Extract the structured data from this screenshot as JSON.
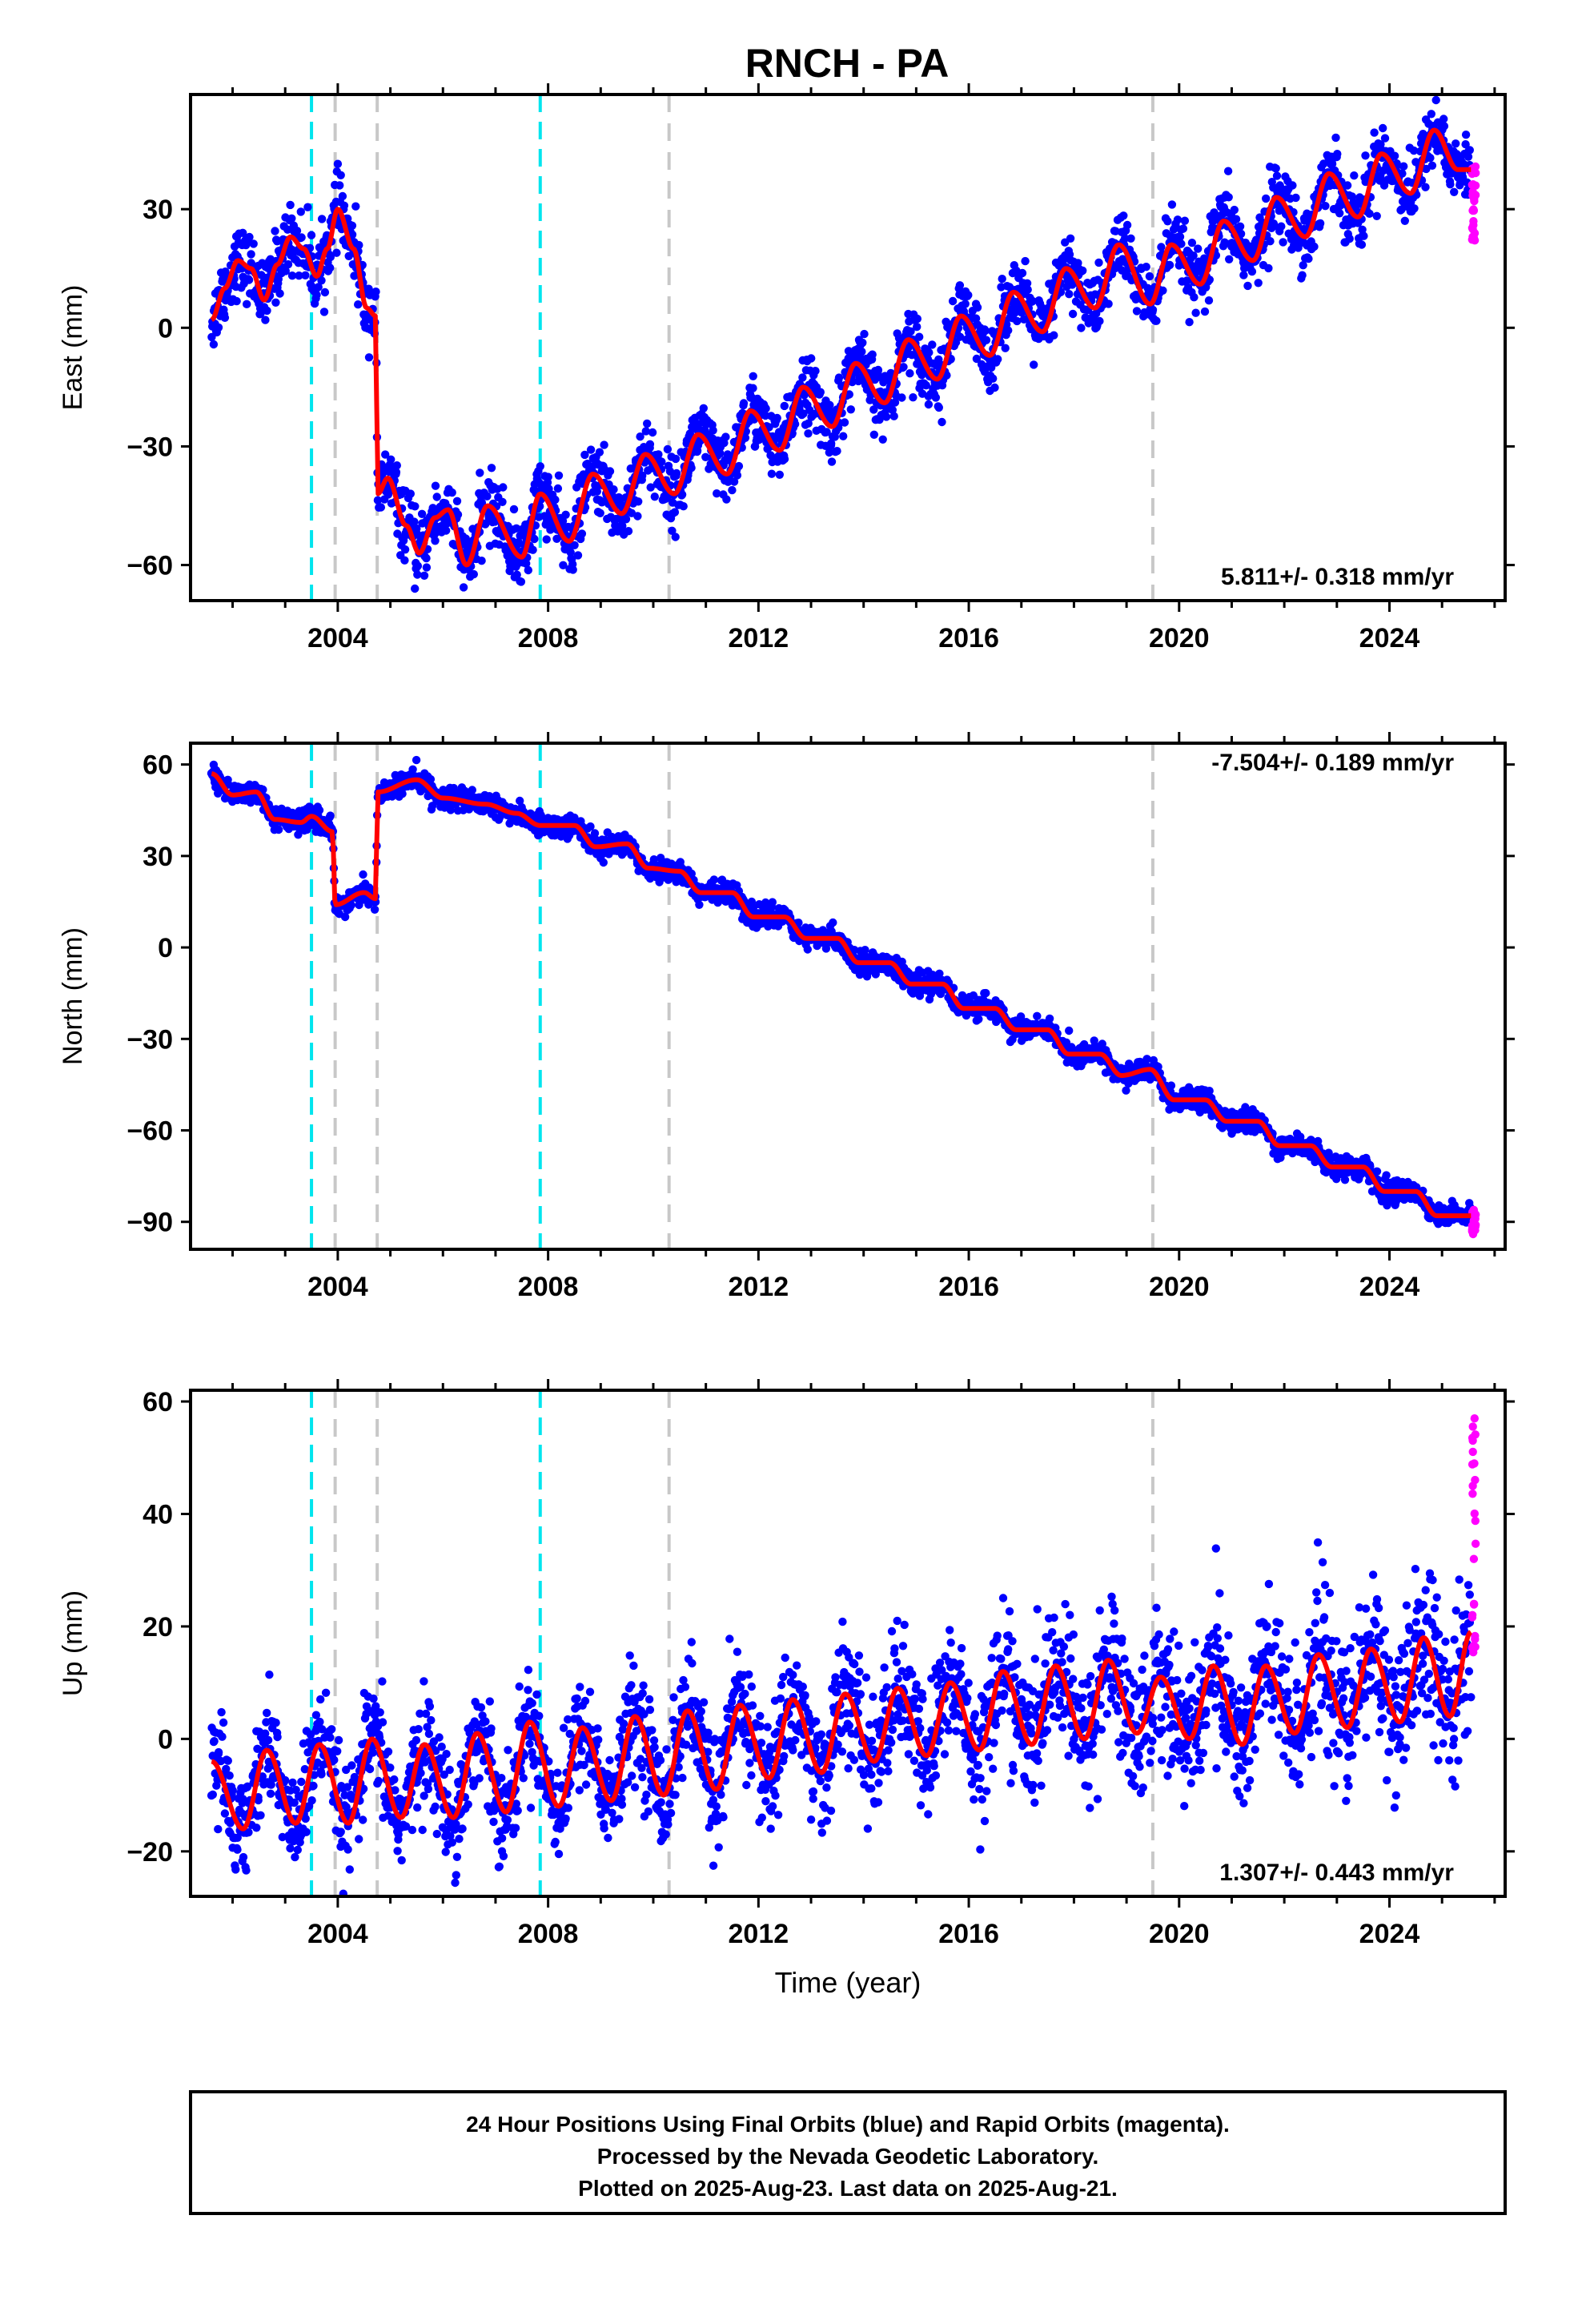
{
  "page": {
    "title": "RNCH - PA",
    "footer_lines": [
      "24 Hour Positions Using Final Orbits (blue) and Rapid Orbits (magenta).",
      "Processed by the Nevada Geodetic Laboratory.",
      "Plotted on 2025-Aug-23. Last data on 2025-Aug-21."
    ],
    "colors": {
      "final_points": "#0000ff",
      "rapid_points": "#ff00ff",
      "model": "#ff0000",
      "antenna_change": "#00e5ee",
      "other_offset": "#c8c8c8"
    }
  },
  "chart_data": [
    {
      "type": "scatter",
      "component": "east",
      "ylabel": "East (mm)",
      "xlabel": "",
      "rate": "5.811+/- 0.318 mm/yr",
      "xlim": [
        2001.2,
        2026.2
      ],
      "ylim": [
        -69,
        59
      ],
      "yticks": [
        -60,
        -30,
        0,
        30
      ],
      "xticks": [
        2004,
        2008,
        2012,
        2016,
        2020,
        2024
      ],
      "x_range": [
        2001.6,
        2025.55
      ],
      "rapid_x": [
        2025.57,
        2025.64
      ],
      "vertical_lines": [
        {
          "x": 2003.5,
          "kind": "antenna_change"
        },
        {
          "x": 2003.95,
          "kind": "other_offset"
        },
        {
          "x": 2004.75,
          "kind": "other_offset"
        },
        {
          "x": 2007.85,
          "kind": "antenna_change"
        },
        {
          "x": 2010.3,
          "kind": "other_offset"
        },
        {
          "x": 2019.5,
          "kind": "other_offset"
        }
      ],
      "model_points": [
        [
          2001.6,
          2
        ],
        [
          2001.85,
          10
        ],
        [
          2002.1,
          17
        ],
        [
          2002.35,
          15
        ],
        [
          2002.6,
          7
        ],
        [
          2002.85,
          16
        ],
        [
          2003.1,
          23
        ],
        [
          2003.35,
          20
        ],
        [
          2003.6,
          13
        ],
        [
          2003.8,
          20
        ],
        [
          2004.0,
          30
        ],
        [
          2004.3,
          20
        ],
        [
          2004.55,
          5
        ],
        [
          2004.72,
          3
        ],
        [
          2004.76,
          -42
        ],
        [
          2004.95,
          -38
        ],
        [
          2005.3,
          -50
        ],
        [
          2005.55,
          -57
        ],
        [
          2005.85,
          -48
        ],
        [
          2006.1,
          -46
        ],
        [
          2006.45,
          -60
        ],
        [
          2006.85,
          -45
        ],
        [
          2007.5,
          -58
        ],
        [
          2007.85,
          -42
        ],
        [
          2008.4,
          -54
        ],
        [
          2008.85,
          -37
        ],
        [
          2009.4,
          -47
        ],
        [
          2009.85,
          -32
        ],
        [
          2010.4,
          -42
        ],
        [
          2010.85,
          -27
        ],
        [
          2011.4,
          -37
        ],
        [
          2011.85,
          -21
        ],
        [
          2012.4,
          -31
        ],
        [
          2012.85,
          -15
        ],
        [
          2013.4,
          -25
        ],
        [
          2013.85,
          -9
        ],
        [
          2014.4,
          -19
        ],
        [
          2014.85,
          -3
        ],
        [
          2015.4,
          -13
        ],
        [
          2015.85,
          3
        ],
        [
          2016.4,
          -7
        ],
        [
          2016.85,
          9
        ],
        [
          2017.4,
          -1
        ],
        [
          2017.85,
          15
        ],
        [
          2018.4,
          5
        ],
        [
          2018.85,
          21
        ],
        [
          2019.45,
          6
        ],
        [
          2019.85,
          21
        ],
        [
          2020.4,
          11
        ],
        [
          2020.85,
          27
        ],
        [
          2021.4,
          17
        ],
        [
          2021.85,
          33
        ],
        [
          2022.4,
          23
        ],
        [
          2022.85,
          39
        ],
        [
          2023.4,
          28
        ],
        [
          2023.85,
          44
        ],
        [
          2024.4,
          34
        ],
        [
          2024.85,
          50
        ],
        [
          2025.3,
          40
        ],
        [
          2025.55,
          40
        ]
      ],
      "noise": 4.2
    },
    {
      "type": "scatter",
      "component": "north",
      "ylabel": "North (mm)",
      "xlabel": "",
      "rate": "-7.504+/- 0.189 mm/yr",
      "xlim": [
        2001.2,
        2026.2
      ],
      "ylim": [
        -99,
        67
      ],
      "yticks": [
        -90,
        -60,
        -30,
        0,
        30,
        60
      ],
      "xticks": [
        2004,
        2008,
        2012,
        2016,
        2020,
        2024
      ],
      "x_range": [
        2001.6,
        2025.55
      ],
      "rapid_x": [
        2025.57,
        2025.64
      ],
      "vertical_lines": [
        {
          "x": 2003.5,
          "kind": "antenna_change"
        },
        {
          "x": 2003.95,
          "kind": "other_offset"
        },
        {
          "x": 2004.75,
          "kind": "other_offset"
        },
        {
          "x": 2007.85,
          "kind": "antenna_change"
        },
        {
          "x": 2010.3,
          "kind": "other_offset"
        },
        {
          "x": 2019.5,
          "kind": "other_offset"
        }
      ],
      "model_points": [
        [
          2001.6,
          57
        ],
        [
          2002.0,
          50
        ],
        [
          2002.45,
          51
        ],
        [
          2002.8,
          42
        ],
        [
          2003.3,
          41
        ],
        [
          2003.5,
          43
        ],
        [
          2003.9,
          38
        ],
        [
          2003.95,
          14
        ],
        [
          2004.5,
          18
        ],
        [
          2004.72,
          16
        ],
        [
          2004.76,
          51
        ],
        [
          2005.5,
          55
        ],
        [
          2006.0,
          49
        ],
        [
          2006.8,
          47
        ],
        [
          2007.4,
          44
        ],
        [
          2007.85,
          40
        ],
        [
          2008.5,
          40
        ],
        [
          2008.9,
          33
        ],
        [
          2009.5,
          34
        ],
        [
          2009.9,
          26
        ],
        [
          2010.5,
          25
        ],
        [
          2010.9,
          18
        ],
        [
          2011.5,
          18
        ],
        [
          2011.9,
          10
        ],
        [
          2012.5,
          10
        ],
        [
          2012.9,
          3
        ],
        [
          2013.5,
          3
        ],
        [
          2013.9,
          -5
        ],
        [
          2014.5,
          -5
        ],
        [
          2014.9,
          -12
        ],
        [
          2015.5,
          -12
        ],
        [
          2015.9,
          -20
        ],
        [
          2016.5,
          -20
        ],
        [
          2016.9,
          -27
        ],
        [
          2017.5,
          -27
        ],
        [
          2017.9,
          -35
        ],
        [
          2018.5,
          -35
        ],
        [
          2018.9,
          -42
        ],
        [
          2019.45,
          -40
        ],
        [
          2019.9,
          -50
        ],
        [
          2020.5,
          -50
        ],
        [
          2020.9,
          -57
        ],
        [
          2021.5,
          -57
        ],
        [
          2021.9,
          -65
        ],
        [
          2022.5,
          -65
        ],
        [
          2022.9,
          -72
        ],
        [
          2023.5,
          -72
        ],
        [
          2023.9,
          -80
        ],
        [
          2024.5,
          -80
        ],
        [
          2024.9,
          -88
        ],
        [
          2025.55,
          -88
        ]
      ],
      "noise": 1.8
    },
    {
      "type": "scatter",
      "component": "up",
      "ylabel": "Up (mm)",
      "xlabel": "Time (year)",
      "rate": "1.307+/- 0.443 mm/yr",
      "xlim": [
        2001.2,
        2026.2
      ],
      "ylim": [
        -28,
        62
      ],
      "yticks": [
        -20,
        0,
        20,
        40,
        60
      ],
      "xticks": [
        2004,
        2008,
        2012,
        2016,
        2020,
        2024
      ],
      "x_range": [
        2001.6,
        2025.55
      ],
      "rapid_x": [
        2025.57,
        2025.64
      ],
      "vertical_lines": [
        {
          "x": 2003.5,
          "kind": "antenna_change"
        },
        {
          "x": 2003.95,
          "kind": "other_offset"
        },
        {
          "x": 2004.75,
          "kind": "other_offset"
        },
        {
          "x": 2007.85,
          "kind": "antenna_change"
        },
        {
          "x": 2010.3,
          "kind": "other_offset"
        },
        {
          "x": 2019.5,
          "kind": "other_offset"
        }
      ],
      "model_points": [
        [
          2001.6,
          -4
        ],
        [
          2002.2,
          -16
        ],
        [
          2002.65,
          -2
        ],
        [
          2003.2,
          -15
        ],
        [
          2003.65,
          -1
        ],
        [
          2004.2,
          -15
        ],
        [
          2004.65,
          0
        ],
        [
          2005.2,
          -14
        ],
        [
          2005.65,
          -1
        ],
        [
          2006.2,
          -14
        ],
        [
          2006.65,
          1
        ],
        [
          2007.2,
          -13
        ],
        [
          2007.65,
          3
        ],
        [
          2008.2,
          -12
        ],
        [
          2008.65,
          2
        ],
        [
          2009.2,
          -11
        ],
        [
          2009.65,
          4
        ],
        [
          2010.2,
          -10
        ],
        [
          2010.65,
          5
        ],
        [
          2011.2,
          -9
        ],
        [
          2011.65,
          6
        ],
        [
          2012.2,
          -7
        ],
        [
          2012.65,
          7
        ],
        [
          2013.2,
          -6
        ],
        [
          2013.65,
          8
        ],
        [
          2014.2,
          -4
        ],
        [
          2014.65,
          9
        ],
        [
          2015.2,
          -3
        ],
        [
          2015.65,
          10
        ],
        [
          2016.2,
          -2
        ],
        [
          2016.65,
          12
        ],
        [
          2017.2,
          -1
        ],
        [
          2017.65,
          13
        ],
        [
          2018.2,
          0
        ],
        [
          2018.65,
          14
        ],
        [
          2019.2,
          1
        ],
        [
          2019.65,
          11
        ],
        [
          2020.2,
          0
        ],
        [
          2020.65,
          13
        ],
        [
          2021.2,
          -1
        ],
        [
          2021.65,
          13
        ],
        [
          2022.2,
          1
        ],
        [
          2022.65,
          15
        ],
        [
          2023.2,
          2
        ],
        [
          2023.65,
          16
        ],
        [
          2024.2,
          3
        ],
        [
          2024.65,
          18
        ],
        [
          2025.15,
          4
        ],
        [
          2025.55,
          19
        ]
      ],
      "noise": 4.5,
      "noise_growth": 0.1
    }
  ],
  "panels": [
    {
      "title_chars": "",
      "rate_position": "bottom-right"
    },
    {
      "rate_position": "top-right"
    },
    {
      "rate_position": "bottom-right"
    }
  ]
}
